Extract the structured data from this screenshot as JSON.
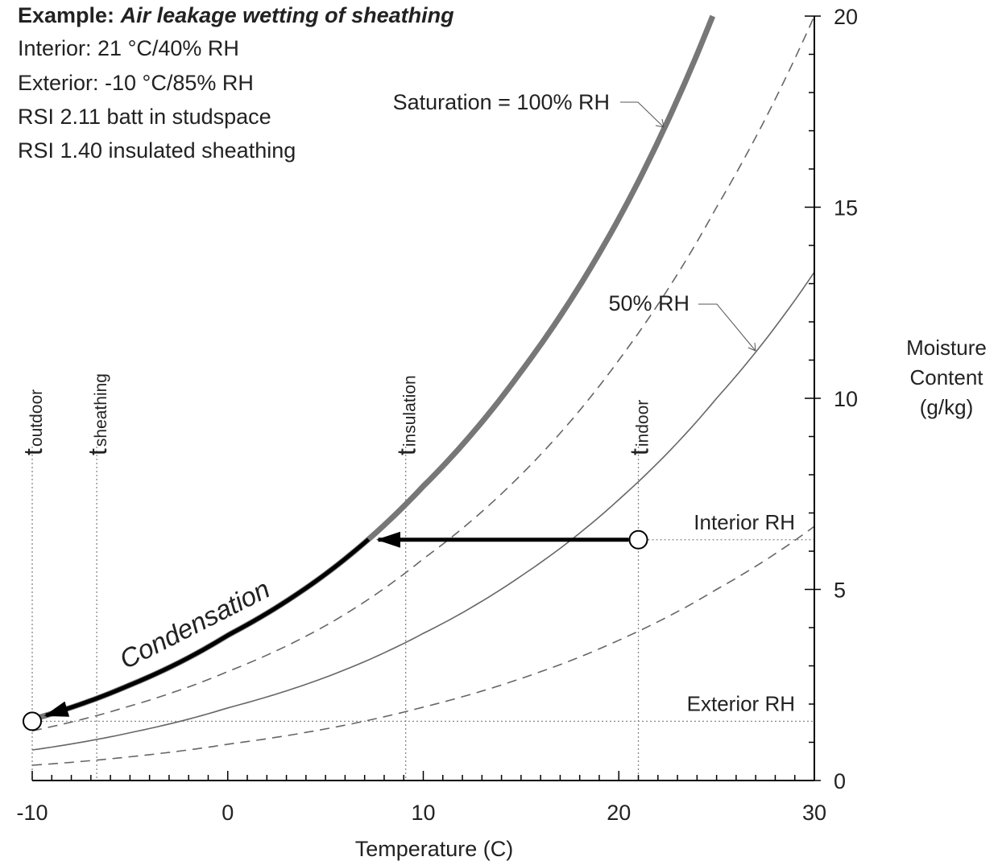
{
  "info": {
    "title_prefix": "Example:",
    "title_italic": "Air leakage wetting of sheathing",
    "lines": [
      "Interior: 21 °C/40% RH",
      "Exterior: -10 °C/85% RH",
      "RSI 2.11 batt in studspace",
      "RSI 1.40 insulated sheathing"
    ]
  },
  "chart_data": {
    "type": "line",
    "xlabel": "Temperature (C)",
    "ylabel": [
      "Moisture",
      "Content",
      "(g/kg)"
    ],
    "xlim": [
      -10,
      30
    ],
    "ylim": [
      0,
      20
    ],
    "x_ticks": [
      -10,
      0,
      10,
      20,
      30
    ],
    "y_ticks": [
      0,
      5,
      10,
      15,
      20
    ],
    "grid": false,
    "series": [
      {
        "name": "Saturation = 100% RH",
        "rh": 100,
        "style": "thick",
        "color": "#777777",
        "x": [
          -10,
          -5,
          0,
          5,
          10,
          15,
          20,
          24.8
        ],
        "y": [
          1.6,
          2.5,
          3.8,
          5.4,
          7.7,
          10.7,
          14.7,
          20.0
        ]
      },
      {
        "name": "",
        "rh": 75,
        "style": "dashed",
        "color": "#666666",
        "x": [
          -10,
          -5,
          0,
          5,
          10,
          15,
          20,
          25,
          30
        ],
        "y": [
          1.3,
          1.95,
          2.85,
          4.05,
          5.8,
          8.0,
          11.0,
          15.0,
          20.0
        ]
      },
      {
        "name": "50% RH",
        "rh": 50,
        "style": "solid",
        "color": "#666666",
        "x": [
          -10,
          -5,
          0,
          5,
          10,
          15,
          20,
          25,
          30
        ],
        "y": [
          0.8,
          1.25,
          1.9,
          2.7,
          3.85,
          5.35,
          7.35,
          10.0,
          13.3
        ]
      },
      {
        "name": "",
        "rh": 25,
        "style": "dashed",
        "color": "#666666",
        "x": [
          -10,
          -5,
          0,
          5,
          10,
          15,
          20,
          25,
          30
        ],
        "y": [
          0.4,
          0.62,
          0.95,
          1.35,
          1.92,
          2.67,
          3.67,
          5.0,
          6.65
        ]
      }
    ],
    "temperature_markers": [
      {
        "id": "outdoor",
        "main": "t",
        "sub": "outdoor",
        "x": -10
      },
      {
        "id": "sheathing",
        "main": "t",
        "sub": "sheathing",
        "x": -6.7
      },
      {
        "id": "insulation",
        "main": "t",
        "sub": "insulation",
        "x": 9.1
      },
      {
        "id": "indoor",
        "main": "t",
        "sub": "indoor",
        "x": 21
      }
    ],
    "rh_levels": [
      {
        "label": "Interior RH",
        "y": 6.3
      },
      {
        "label": "Exterior RH",
        "y": 1.55
      }
    ],
    "points": [
      {
        "name": "interior-state",
        "x": 21,
        "y": 6.3
      },
      {
        "name": "exterior-state",
        "x": -10,
        "y": 1.55
      }
    ],
    "arrows": [
      {
        "name": "cooling-arrow",
        "from": [
          21,
          6.3
        ],
        "to": [
          7.2,
          6.3
        ]
      },
      {
        "name": "condensation-arrow",
        "label": "Condensation",
        "along_saturation_from": 7.2,
        "to_x": -10
      }
    ]
  }
}
